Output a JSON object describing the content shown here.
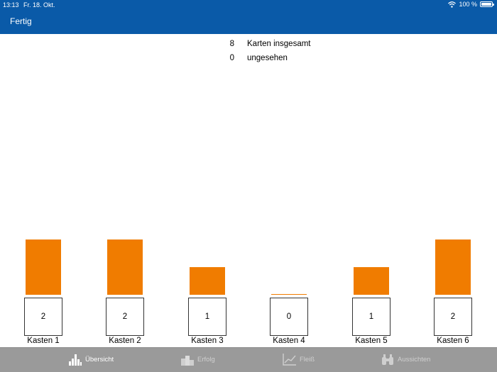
{
  "status_bar": {
    "time": "13:13",
    "date": "Fr. 18. Okt.",
    "battery": "100 %"
  },
  "header": {
    "done_label": "Fertig"
  },
  "stats": [
    {
      "value": "8",
      "label": "Karten insgesamt"
    },
    {
      "value": "0",
      "label": "ungesehen"
    }
  ],
  "chart_data": {
    "type": "bar",
    "categories": [
      "Kasten 1",
      "Kasten 2",
      "Kasten 3",
      "Kasten 4",
      "Kasten 5",
      "Kasten 6"
    ],
    "values": [
      2,
      2,
      1,
      0,
      1,
      2
    ],
    "ylim": [
      0,
      2
    ]
  },
  "colors": {
    "header": "#0a5aa8",
    "bar": "#f07c00",
    "tabbar": "#9a9a9a"
  },
  "tabs": [
    {
      "label": "Übersicht",
      "icon": "bar-chart-icon",
      "active": true
    },
    {
      "label": "Erfolg",
      "icon": "podium-icon",
      "active": false
    },
    {
      "label": "Fleiß",
      "icon": "line-chart-icon",
      "active": false
    },
    {
      "label": "Aussichten",
      "icon": "binoculars-icon",
      "active": false
    }
  ]
}
